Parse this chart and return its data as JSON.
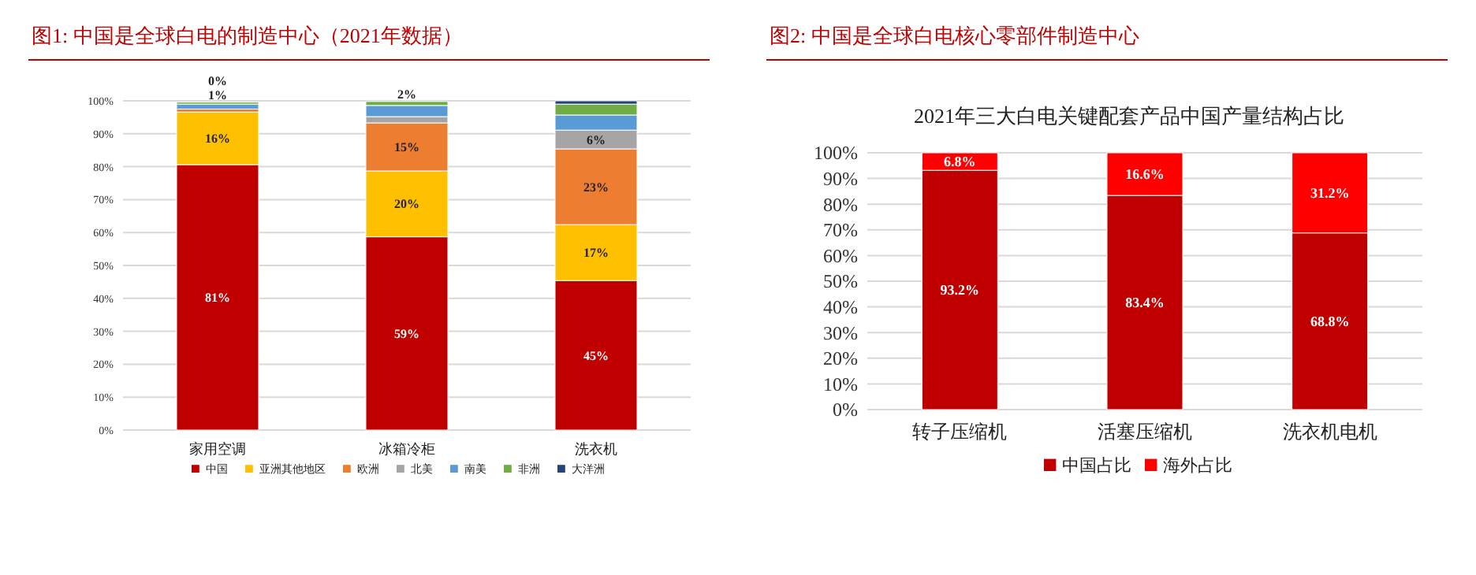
{
  "chart_data": [
    {
      "type": "bar",
      "title": "图1:   中国是全球白电的制造中心（2021年数据）",
      "stacked": true,
      "categories": [
        "家用空调",
        "冰箱冷柜",
        "洗衣机"
      ],
      "series": [
        {
          "name": "中国",
          "color": "#c00000",
          "values": [
            80.6,
            58.7,
            45.4
          ],
          "value_labels": [
            "81%",
            "59%",
            "45%"
          ]
        },
        {
          "name": "亚洲其他地区",
          "color": "#ffc000",
          "values": [
            16.0,
            20.0,
            17.0
          ],
          "value_labels": [
            "16%",
            "20%",
            "17%"
          ]
        },
        {
          "name": "欧洲",
          "color": "#ed7d31",
          "values": [
            0.9,
            14.6,
            23.0
          ],
          "value_labels": [
            "1%",
            "15%",
            "23%"
          ]
        },
        {
          "name": "北美",
          "color": "#a5a5a5",
          "values": [
            null,
            1.9,
            5.7
          ],
          "value_labels": [
            null,
            "2%",
            "6%"
          ]
        },
        {
          "name": "南美",
          "color": "#5b9bd5",
          "values": [
            1.5,
            3.4,
            4.6
          ],
          "value_labels": [
            null,
            null,
            null
          ]
        },
        {
          "name": "非洲",
          "color": "#70ad47",
          "values": [
            0.6,
            1.2,
            3.3
          ],
          "value_labels": [
            null,
            null,
            null
          ]
        },
        {
          "name": "大洋洲",
          "color": "#264478",
          "values": [
            0,
            null,
            1.0
          ],
          "value_labels": [
            "0%",
            null,
            null
          ]
        }
      ],
      "ylim": [
        0,
        100
      ],
      "yticks": [
        {
          "value": 0,
          "label": "0%"
        },
        {
          "value": 10,
          "label": "10%"
        },
        {
          "value": 20,
          "label": "20%"
        },
        {
          "value": 30,
          "label": "30%"
        },
        {
          "value": 40,
          "label": "40%"
        },
        {
          "value": 50,
          "label": "50%"
        },
        {
          "value": 60,
          "label": "60%"
        },
        {
          "value": 70,
          "label": "70%"
        },
        {
          "value": 80,
          "label": "80%"
        },
        {
          "value": 90,
          "label": "90%"
        },
        {
          "value": 100,
          "label": "100%"
        }
      ],
      "grid": "y",
      "legend": "bottom"
    },
    {
      "type": "bar",
      "title": "图2:   中国是全球白电核心零部件制造中心",
      "subtitle": "2021年三大白电关键配套产品中国产量结构占比",
      "stacked": true,
      "categories": [
        "转子压缩机",
        "活塞压缩机",
        "洗衣机电机"
      ],
      "series": [
        {
          "name": "中国占比",
          "color": "#c00000",
          "values": [
            93.2,
            83.4,
            68.8
          ],
          "value_labels": [
            "93.2%",
            "83.4%",
            "68.8%"
          ]
        },
        {
          "name": "海外占比",
          "color": "#ff0000",
          "values": [
            6.8,
            16.6,
            31.2
          ],
          "value_labels": [
            "6.8%",
            "16.6%",
            "31.2%"
          ]
        }
      ],
      "ylim": [
        0,
        100
      ],
      "yticks": [
        {
          "value": 0,
          "label": "0%"
        },
        {
          "value": 10,
          "label": "10%"
        },
        {
          "value": 20,
          "label": "20%"
        },
        {
          "value": 30,
          "label": "30%"
        },
        {
          "value": 40,
          "label": "40%"
        },
        {
          "value": 50,
          "label": "50%"
        },
        {
          "value": 60,
          "label": "60%"
        },
        {
          "value": 70,
          "label": "70%"
        },
        {
          "value": 80,
          "label": "80%"
        },
        {
          "value": 90,
          "label": "90%"
        },
        {
          "value": 100,
          "label": "100%"
        }
      ],
      "grid": "y",
      "legend": "bottom"
    }
  ]
}
